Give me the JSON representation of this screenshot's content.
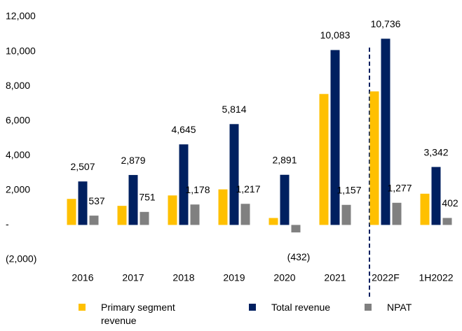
{
  "chart_data": {
    "type": "bar",
    "categories": [
      "2016",
      "2017",
      "2018",
      "2019",
      "2020",
      "2021",
      "2022F",
      "1H2022"
    ],
    "series": [
      {
        "name": "Primary segment revenue",
        "color": "#ffc000",
        "values": [
          1500,
          1100,
          1700,
          2050,
          400,
          7550,
          7700,
          1800
        ]
      },
      {
        "name": "Total revenue",
        "color": "#002060",
        "values": [
          2507,
          2879,
          4645,
          5814,
          2891,
          10083,
          10736,
          3342
        ],
        "value_labels": [
          "2,507",
          "2,879",
          "4,645",
          "5,814",
          "2,891",
          "10,083",
          "10,736",
          "3,342"
        ]
      },
      {
        "name": "NPAT",
        "color": "#808080",
        "values": [
          537,
          751,
          1178,
          1217,
          -432,
          1157,
          1277,
          402
        ],
        "value_labels": [
          "537",
          "751",
          "1,178",
          "1,217",
          "(432)",
          "1,157",
          "1,277",
          "402"
        ]
      }
    ],
    "ylim": [
      -2000,
      12000
    ],
    "yticks": [
      {
        "value": -2000,
        "label": "(2,000)"
      },
      {
        "value": 0,
        "label": "-"
      },
      {
        "value": 2000,
        "label": "2,000"
      },
      {
        "value": 4000,
        "label": "4,000"
      },
      {
        "value": 6000,
        "label": "6,000"
      },
      {
        "value": 8000,
        "label": "8,000"
      },
      {
        "value": 10000,
        "label": "10,000"
      },
      {
        "value": 12000,
        "label": "12,000"
      }
    ],
    "grid": false
  }
}
